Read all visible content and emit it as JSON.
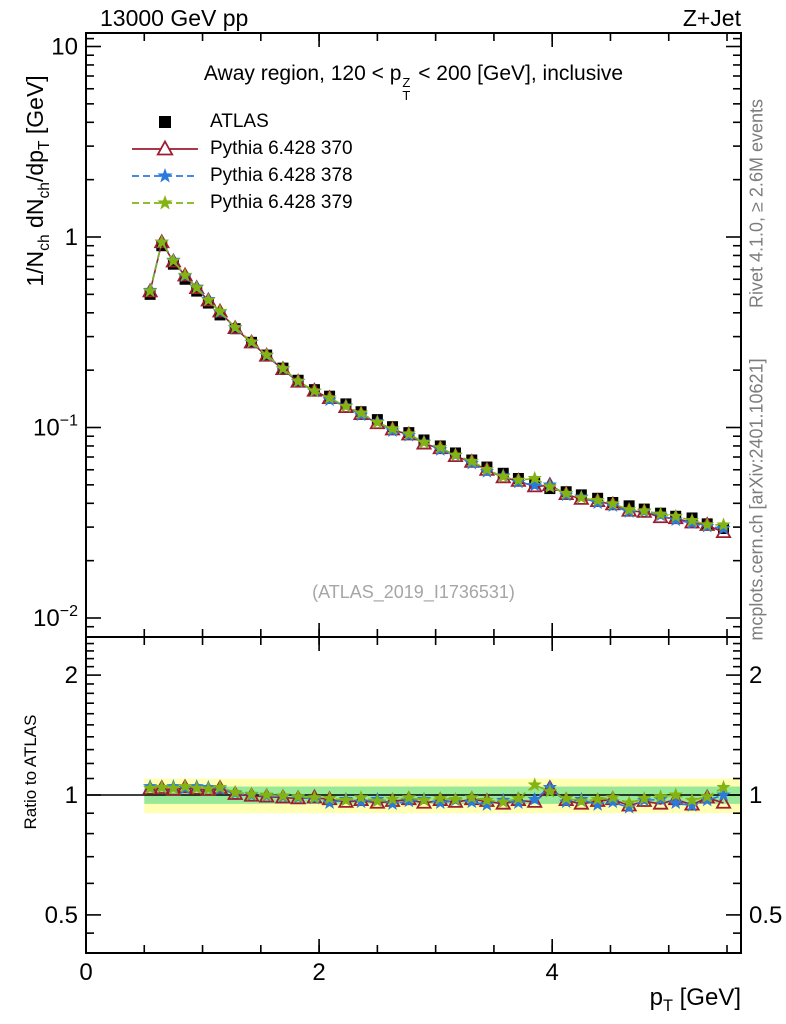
{
  "header": {
    "left": "13000 GeV pp",
    "right": "Z+Jet"
  },
  "labels": {
    "panel_title_plain": "Away region, 120 < pTZ < 200 [GeV], inclusive",
    "panel_title_parts": [
      {
        "t": "Away region, 120 < p"
      },
      {
        "stack": [
          "Z",
          "T"
        ]
      },
      {
        "t": " < 200 [GeV], inclusive"
      }
    ],
    "y_axis_title_plain": "1/Nch dNch/dpT [GeV]",
    "y_axis_title_parts": [
      {
        "t": "1/N"
      },
      {
        "t": "ch",
        "sub": true
      },
      {
        "t": " dN"
      },
      {
        "t": "ch",
        "sub": true
      },
      {
        "t": "/dp"
      },
      {
        "t": "T",
        "sub": true
      },
      {
        "t": " [GeV]"
      }
    ],
    "ratio_axis_title": "Ratio to ATLAS",
    "x_axis_title_plain": "pT [GeV]",
    "x_axis_title_parts": [
      {
        "t": "p"
      },
      {
        "t": "T",
        "sub": true
      },
      {
        "t": " [GeV]"
      }
    ]
  },
  "watermark": "(ATLAS_2019_I1736531)",
  "side_notes": {
    "top": "Rivet 4.1.0, ≥ 2.6M events",
    "bottom": "mcplots.cern.ch [arXiv:2401.10621]"
  },
  "legend": [
    {
      "label": "ATLAS",
      "marker": "square",
      "color": "#000000",
      "line": "none"
    },
    {
      "label": "Pythia 6.428 370",
      "marker": "triangle-open",
      "color": "#9e1b30",
      "line": "solid"
    },
    {
      "label": "Pythia 6.428 378",
      "marker": "star",
      "color": "#2b7bdd",
      "line": "dashed"
    },
    {
      "label": "Pythia 6.428 379",
      "marker": "star",
      "color": "#84b414",
      "line": "dashed"
    }
  ],
  "chart_data": {
    "type": "line",
    "title": "Away region, 120 < pTZ < 200 [GeV], inclusive",
    "xlabel": "pT [GeV]",
    "ylabel": "1/Nch dNch/dpT [GeV]",
    "ylabel_ratio": "Ratio to ATLAS",
    "x_range": [
      0,
      5.62
    ],
    "y_top_range": [
      0.0079,
      11.8
    ],
    "y_ratio_range": [
      0.4,
      2.45
    ],
    "y_top_scale": "log",
    "y_ratio_scale": "log",
    "x": [
      0.55,
      0.65,
      0.75,
      0.85,
      0.95,
      1.05,
      1.15,
      1.28,
      1.42,
      1.55,
      1.69,
      1.82,
      1.96,
      2.09,
      2.23,
      2.36,
      2.5,
      2.63,
      2.77,
      2.9,
      3.04,
      3.17,
      3.31,
      3.44,
      3.58,
      3.71,
      3.85,
      3.98,
      4.12,
      4.25,
      4.39,
      4.52,
      4.66,
      4.79,
      4.93,
      5.06,
      5.2,
      5.33,
      5.47
    ],
    "series": [
      {
        "name": "ATLAS",
        "marker": "square",
        "color": "#000000",
        "line": "none",
        "values": [
          0.5,
          0.9,
          0.72,
          0.6,
          0.52,
          0.45,
          0.39,
          0.33,
          0.28,
          0.24,
          0.205,
          0.177,
          0.158,
          0.146,
          0.133,
          0.121,
          0.11,
          0.101,
          0.094,
          0.086,
          0.08,
          0.0735,
          0.0675,
          0.062,
          0.0575,
          0.054,
          0.051,
          0.0478,
          0.046,
          0.0443,
          0.0425,
          0.0404,
          0.0388,
          0.0373,
          0.0355,
          0.0342,
          0.0335,
          0.0312,
          0.0295
        ]
      },
      {
        "name": "Pythia 6.428 370",
        "marker": "triangle-open",
        "color": "#9e1b30",
        "line": "solid",
        "ratio": [
          1.035,
          1.04,
          1.03,
          1.045,
          1.035,
          1.03,
          1.04,
          1.005,
          0.995,
          0.99,
          0.985,
          0.98,
          0.985,
          0.975,
          0.96,
          0.97,
          0.955,
          0.965,
          0.975,
          0.955,
          0.97,
          0.96,
          0.975,
          0.965,
          0.95,
          0.97,
          0.96,
          1.04,
          0.97,
          0.95,
          0.965,
          0.975,
          0.94,
          0.965,
          0.95,
          0.975,
          0.945,
          0.985,
          0.955
        ]
      },
      {
        "name": "Pythia 6.428 378",
        "marker": "star",
        "color": "#2b7bdd",
        "line": "dashed",
        "ratio": [
          1.05,
          1.045,
          1.05,
          1.04,
          1.05,
          1.045,
          1.035,
          1.01,
          1.0,
          0.995,
          0.99,
          0.985,
          0.98,
          0.955,
          0.975,
          0.96,
          0.975,
          0.95,
          0.965,
          0.975,
          0.955,
          0.97,
          0.96,
          0.945,
          0.97,
          0.955,
          0.975,
          1.045,
          0.96,
          0.975,
          0.945,
          0.96,
          0.93,
          0.97,
          0.975,
          0.955,
          0.94,
          0.97,
          1.0
        ]
      },
      {
        "name": "Pythia 6.428 379",
        "marker": "star",
        "color": "#84b414",
        "line": "dashed",
        "ratio": [
          1.04,
          1.045,
          1.04,
          1.05,
          1.04,
          1.035,
          1.045,
          1.015,
          1.005,
          1.0,
          0.995,
          0.99,
          0.985,
          0.98,
          0.97,
          0.985,
          0.965,
          0.975,
          0.985,
          0.97,
          0.98,
          0.975,
          0.985,
          0.97,
          0.96,
          0.98,
          1.06,
          1.02,
          0.98,
          0.965,
          0.975,
          0.985,
          0.955,
          0.98,
          0.99,
          1.0,
          0.97,
          0.99,
          1.045
        ]
      }
    ],
    "ratio_reference": 1.0,
    "bands": [
      {
        "lo": 0.9,
        "hi": 1.1,
        "color": "#ffffb3",
        "x_start": 0.5
      },
      {
        "lo": 0.95,
        "hi": 1.05,
        "color": "#97e897",
        "x_start": 0.5
      }
    ],
    "x_ticks": {
      "major": [
        {
          "v": 0,
          "label": "0"
        },
        {
          "v": 2,
          "label": "2"
        },
        {
          "v": 4,
          "label": "4"
        }
      ],
      "minor_step": 0.5
    },
    "y_top_ticks": {
      "major": [
        {
          "v": 10,
          "base": "10",
          "exp": ""
        },
        {
          "v": 1,
          "base": "1",
          "exp": ""
        },
        {
          "v": 0.1,
          "base": "10",
          "exp": "−1"
        },
        {
          "v": 0.01,
          "base": "10",
          "exp": "−2"
        }
      ],
      "minor": [
        0.009,
        0.02,
        0.03,
        0.04,
        0.05,
        0.06,
        0.07,
        0.08,
        0.09,
        0.2,
        0.3,
        0.4,
        0.5,
        0.6,
        0.7,
        0.8,
        0.9,
        2,
        3,
        4,
        5,
        6,
        7,
        8,
        9,
        11
      ]
    },
    "y_ratio_ticks": {
      "major": [
        {
          "v": 2,
          "label": "2"
        },
        {
          "v": 1,
          "label": "1"
        },
        {
          "v": 0.5,
          "label": "0.5"
        }
      ],
      "minor": [
        0.45,
        0.6,
        0.7,
        0.8,
        0.9,
        1.1,
        1.2,
        1.3,
        1.4,
        1.5,
        1.6,
        1.7,
        1.8,
        1.9,
        2.1,
        2.2,
        2.3,
        2.4
      ]
    },
    "legend_position": "top-left",
    "grid": false
  }
}
